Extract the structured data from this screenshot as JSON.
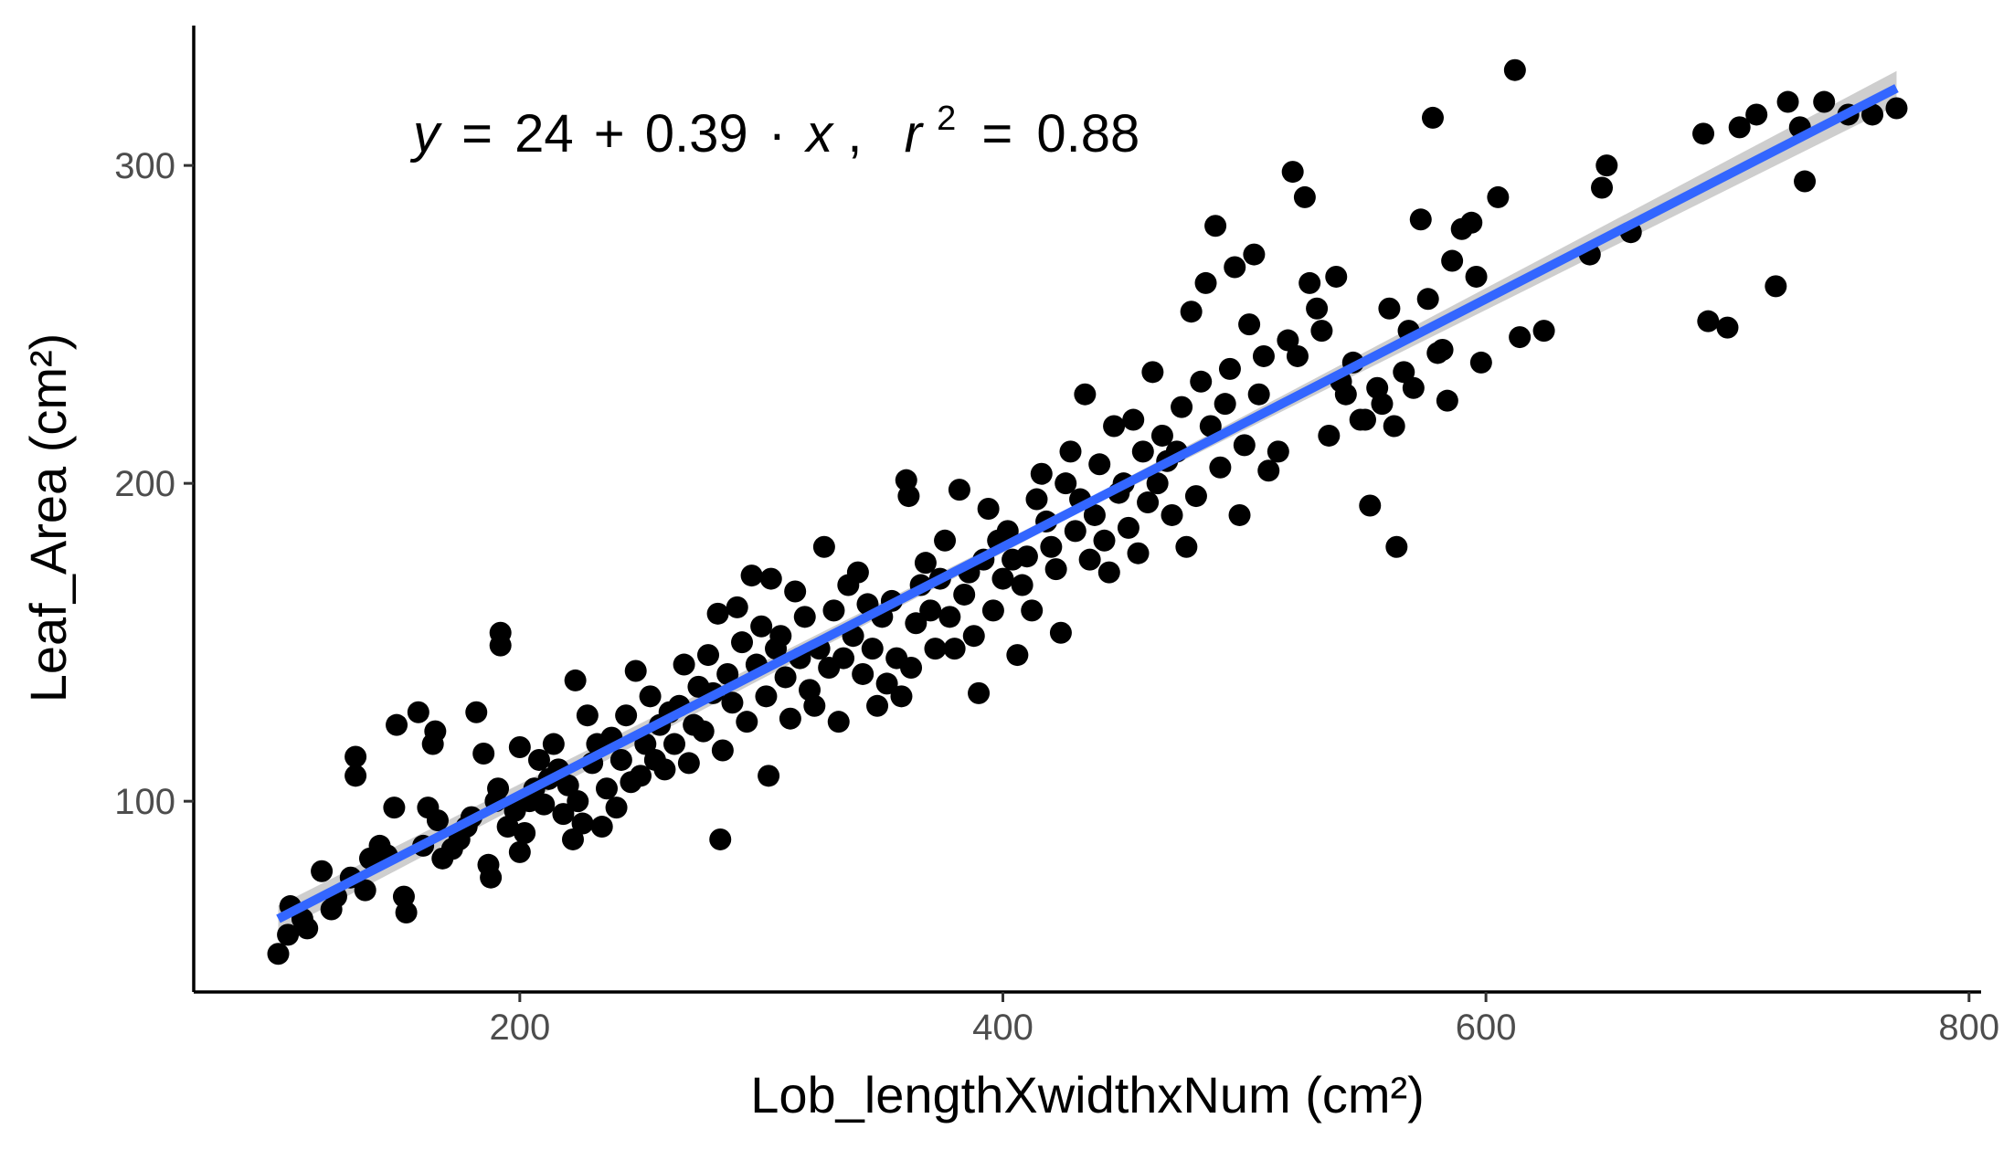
{
  "chart_data": {
    "type": "scatter",
    "title": "",
    "xlabel": "Lob_lengthXwidthxNum (cm²)",
    "ylabel": "Leaf_Area (cm²)",
    "xlim": [
      65,
      805
    ],
    "ylim": [
      40,
      344
    ],
    "xticks": [
      200,
      400,
      600,
      800
    ],
    "yticks": [
      100,
      200,
      300
    ],
    "grid": false,
    "legend": "none",
    "point_color": "#000000",
    "fit": {
      "color": "#3366ff",
      "band_color": "#bdbdbd",
      "intercept": 24,
      "slope": 0.39,
      "x_range": [
        100,
        770
      ],
      "band_halfwidth": 3
    },
    "annotation": {
      "y": "y",
      "eq": "=",
      "intercept": "24",
      "plus": "+",
      "slope": "0.39",
      "dot": "·",
      "x": "x",
      "comma": ",",
      "r": "r",
      "exp": "2",
      "eq2": "=",
      "r2": "0.88"
    },
    "points": [
      [
        100,
        52
      ],
      [
        104,
        58
      ],
      [
        105,
        67
      ],
      [
        110,
        63
      ],
      [
        112,
        60
      ],
      [
        118,
        78
      ],
      [
        122,
        66
      ],
      [
        124,
        70
      ],
      [
        130,
        76
      ],
      [
        132,
        108
      ],
      [
        132,
        114
      ],
      [
        136,
        72
      ],
      [
        138,
        82
      ],
      [
        142,
        86
      ],
      [
        145,
        83
      ],
      [
        148,
        98
      ],
      [
        149,
        124
      ],
      [
        152,
        70
      ],
      [
        153,
        65
      ],
      [
        158,
        128
      ],
      [
        160,
        86
      ],
      [
        162,
        98
      ],
      [
        164,
        118
      ],
      [
        165,
        122
      ],
      [
        166,
        94
      ],
      [
        168,
        82
      ],
      [
        172,
        85
      ],
      [
        175,
        88
      ],
      [
        178,
        92
      ],
      [
        180,
        95
      ],
      [
        182,
        128
      ],
      [
        185,
        115
      ],
      [
        187,
        80
      ],
      [
        188,
        76
      ],
      [
        190,
        100
      ],
      [
        191,
        104
      ],
      [
        192,
        153
      ],
      [
        192,
        149
      ],
      [
        195,
        92
      ],
      [
        198,
        97
      ],
      [
        200,
        117
      ],
      [
        200,
        84
      ],
      [
        202,
        90
      ],
      [
        204,
        100
      ],
      [
        206,
        104
      ],
      [
        208,
        113
      ],
      [
        210,
        99
      ],
      [
        212,
        107
      ],
      [
        214,
        118
      ],
      [
        216,
        110
      ],
      [
        218,
        96
      ],
      [
        220,
        105
      ],
      [
        222,
        88
      ],
      [
        223,
        138
      ],
      [
        224,
        100
      ],
      [
        226,
        93
      ],
      [
        228,
        127
      ],
      [
        230,
        112
      ],
      [
        232,
        118
      ],
      [
        234,
        92
      ],
      [
        236,
        104
      ],
      [
        238,
        120
      ],
      [
        240,
        98
      ],
      [
        242,
        113
      ],
      [
        244,
        127
      ],
      [
        246,
        106
      ],
      [
        248,
        141
      ],
      [
        250,
        108
      ],
      [
        252,
        118
      ],
      [
        254,
        133
      ],
      [
        256,
        113
      ],
      [
        258,
        124
      ],
      [
        260,
        110
      ],
      [
        262,
        128
      ],
      [
        264,
        118
      ],
      [
        266,
        130
      ],
      [
        268,
        143
      ],
      [
        270,
        112
      ],
      [
        272,
        124
      ],
      [
        274,
        136
      ],
      [
        276,
        122
      ],
      [
        278,
        146
      ],
      [
        280,
        134
      ],
      [
        282,
        159
      ],
      [
        283,
        88
      ],
      [
        284,
        116
      ],
      [
        286,
        140
      ],
      [
        288,
        131
      ],
      [
        290,
        161
      ],
      [
        292,
        150
      ],
      [
        294,
        125
      ],
      [
        296,
        171
      ],
      [
        298,
        143
      ],
      [
        300,
        155
      ],
      [
        302,
        133
      ],
      [
        303,
        108
      ],
      [
        304,
        170
      ],
      [
        306,
        148
      ],
      [
        308,
        152
      ],
      [
        310,
        139
      ],
      [
        312,
        126
      ],
      [
        314,
        166
      ],
      [
        316,
        145
      ],
      [
        318,
        158
      ],
      [
        320,
        135
      ],
      [
        322,
        130
      ],
      [
        324,
        148
      ],
      [
        326,
        180
      ],
      [
        328,
        142
      ],
      [
        330,
        160
      ],
      [
        332,
        125
      ],
      [
        334,
        145
      ],
      [
        336,
        168
      ],
      [
        338,
        152
      ],
      [
        340,
        172
      ],
      [
        342,
        140
      ],
      [
        344,
        162
      ],
      [
        346,
        148
      ],
      [
        348,
        130
      ],
      [
        350,
        158
      ],
      [
        352,
        137
      ],
      [
        354,
        163
      ],
      [
        356,
        145
      ],
      [
        358,
        133
      ],
      [
        360,
        201
      ],
      [
        361,
        196
      ],
      [
        362,
        142
      ],
      [
        364,
        156
      ],
      [
        366,
        168
      ],
      [
        368,
        175
      ],
      [
        370,
        160
      ],
      [
        372,
        148
      ],
      [
        374,
        170
      ],
      [
        376,
        182
      ],
      [
        378,
        158
      ],
      [
        380,
        148
      ],
      [
        382,
        198
      ],
      [
        384,
        165
      ],
      [
        386,
        172
      ],
      [
        388,
        152
      ],
      [
        390,
        134
      ],
      [
        392,
        176
      ],
      [
        394,
        192
      ],
      [
        396,
        160
      ],
      [
        398,
        182
      ],
      [
        400,
        170
      ],
      [
        402,
        185
      ],
      [
        404,
        176
      ],
      [
        406,
        146
      ],
      [
        408,
        168
      ],
      [
        410,
        177
      ],
      [
        412,
        160
      ],
      [
        414,
        195
      ],
      [
        416,
        203
      ],
      [
        418,
        188
      ],
      [
        420,
        180
      ],
      [
        422,
        173
      ],
      [
        424,
        153
      ],
      [
        426,
        200
      ],
      [
        428,
        210
      ],
      [
        430,
        185
      ],
      [
        432,
        195
      ],
      [
        434,
        228
      ],
      [
        436,
        176
      ],
      [
        438,
        190
      ],
      [
        440,
        206
      ],
      [
        442,
        182
      ],
      [
        444,
        172
      ],
      [
        446,
        218
      ],
      [
        448,
        197
      ],
      [
        450,
        200
      ],
      [
        452,
        186
      ],
      [
        454,
        220
      ],
      [
        456,
        178
      ],
      [
        458,
        210
      ],
      [
        460,
        194
      ],
      [
        462,
        235
      ],
      [
        464,
        200
      ],
      [
        466,
        215
      ],
      [
        468,
        207
      ],
      [
        470,
        190
      ],
      [
        472,
        210
      ],
      [
        474,
        224
      ],
      [
        476,
        180
      ],
      [
        478,
        254
      ],
      [
        480,
        196
      ],
      [
        482,
        232
      ],
      [
        484,
        263
      ],
      [
        486,
        218
      ],
      [
        488,
        281
      ],
      [
        490,
        205
      ],
      [
        492,
        225
      ],
      [
        494,
        236
      ],
      [
        496,
        268
      ],
      [
        498,
        190
      ],
      [
        500,
        212
      ],
      [
        502,
        250
      ],
      [
        504,
        272
      ],
      [
        506,
        228
      ],
      [
        508,
        240
      ],
      [
        510,
        204
      ],
      [
        514,
        210
      ],
      [
        518,
        245
      ],
      [
        520,
        298
      ],
      [
        522,
        240
      ],
      [
        525,
        290
      ],
      [
        527,
        263
      ],
      [
        530,
        255
      ],
      [
        532,
        248
      ],
      [
        535,
        215
      ],
      [
        538,
        265
      ],
      [
        540,
        232
      ],
      [
        542,
        228
      ],
      [
        545,
        238
      ],
      [
        548,
        220
      ],
      [
        550,
        220
      ],
      [
        552,
        193
      ],
      [
        555,
        230
      ],
      [
        557,
        225
      ],
      [
        560,
        255
      ],
      [
        562,
        218
      ],
      [
        563,
        180
      ],
      [
        566,
        235
      ],
      [
        568,
        248
      ],
      [
        570,
        230
      ],
      [
        573,
        283
      ],
      [
        576,
        258
      ],
      [
        578,
        315
      ],
      [
        580,
        241
      ],
      [
        582,
        242
      ],
      [
        584,
        226
      ],
      [
        586,
        270
      ],
      [
        590,
        280
      ],
      [
        594,
        282
      ],
      [
        596,
        265
      ],
      [
        598,
        238
      ],
      [
        605,
        290
      ],
      [
        614,
        246
      ],
      [
        612,
        330
      ],
      [
        624,
        248
      ],
      [
        643,
        272
      ],
      [
        648,
        293
      ],
      [
        650,
        300
      ],
      [
        660,
        279
      ],
      [
        690,
        310
      ],
      [
        692,
        251
      ],
      [
        700,
        249
      ],
      [
        705,
        312
      ],
      [
        712,
        316
      ],
      [
        720,
        262
      ],
      [
        725,
        320
      ],
      [
        730,
        312
      ],
      [
        732,
        295
      ],
      [
        740,
        320
      ],
      [
        750,
        316
      ],
      [
        760,
        316
      ],
      [
        770,
        318
      ]
    ]
  }
}
